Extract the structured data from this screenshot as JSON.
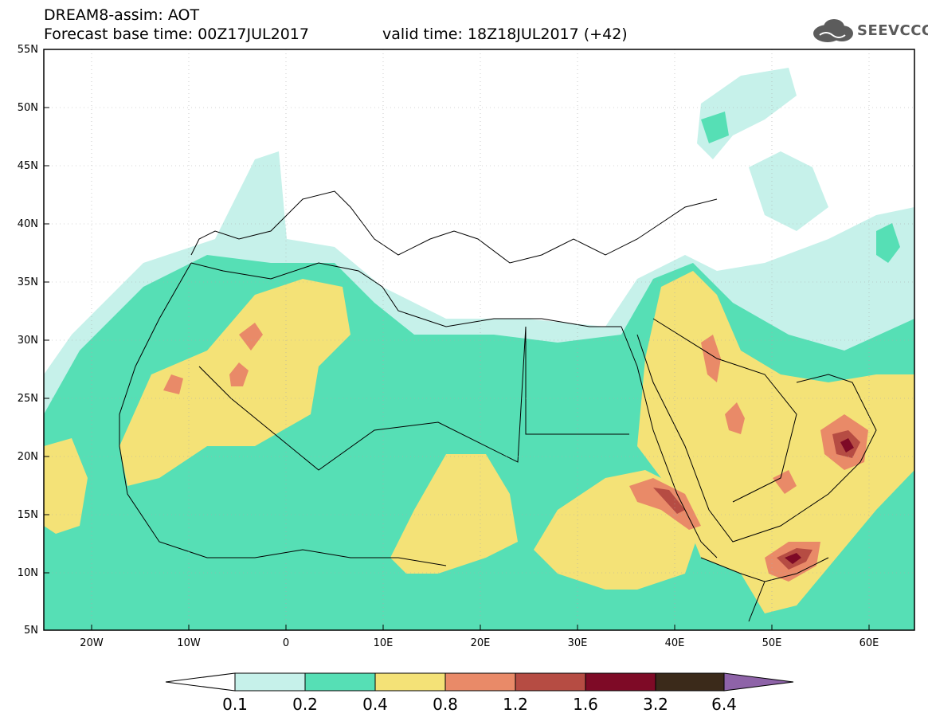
{
  "header": {
    "line1": "DREAM8-assim: AOT",
    "line2": "Forecast base time: 00Z17JUL2017",
    "line3": "valid time: 18Z18JUL2017 (+42)"
  },
  "logo": {
    "text": "SEEVCCC",
    "icon": "cloud-icon"
  },
  "map": {
    "lat_labels": [
      "55N",
      "50N",
      "45N",
      "40N",
      "35N",
      "30N",
      "25N",
      "20N",
      "15N",
      "10N",
      "5N"
    ],
    "lon_labels": [
      "20W",
      "10W",
      "0",
      "10E",
      "20E",
      "30E",
      "40E",
      "50E",
      "60E"
    ],
    "colors": {
      "c01": "#c6f1ea",
      "c02": "#56dfb5",
      "c04": "#f4e277",
      "c08": "#e98a68",
      "c12": "#b64c43",
      "c16": "#7e0a26",
      "c32": "#3b2a1a",
      "c64": "#8e63a8"
    }
  },
  "colorbar": {
    "labels": [
      "0.1",
      "0.2",
      "0.4",
      "0.8",
      "1.2",
      "1.6",
      "3.2",
      "6.4"
    ],
    "colors": [
      "#c6f1ea",
      "#56dfb5",
      "#f4e277",
      "#e98a68",
      "#b64c43",
      "#7e0a26",
      "#3b2a1a"
    ],
    "overflow_color": "#8e63a8"
  }
}
